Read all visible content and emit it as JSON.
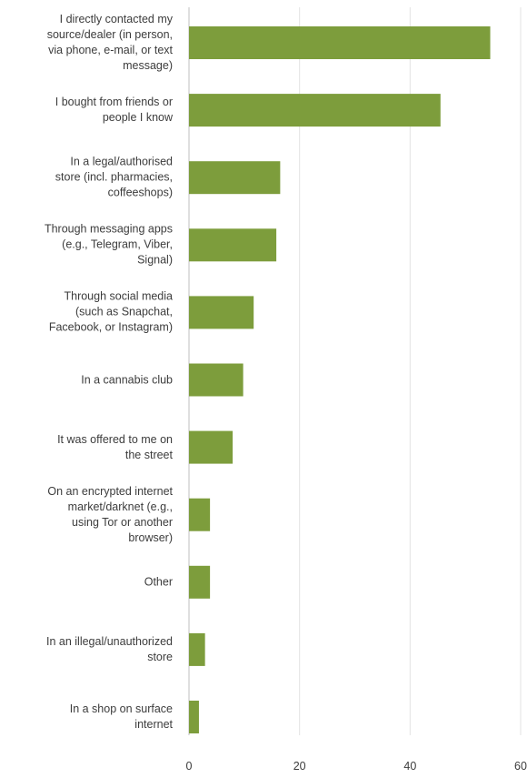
{
  "chart_data": {
    "type": "bar",
    "orientation": "horizontal",
    "title": "",
    "xlabel": "",
    "ylabel": "",
    "xlim": [
      0,
      60
    ],
    "xticks": [
      0,
      20,
      40,
      60
    ],
    "grid": true,
    "bar_color": "#7d9d3c",
    "categories": [
      "I directly contacted my source/dealer (in person, via phone, e-mail, or text message)",
      "I bought from friends or people I know",
      "In a legal/authorised store (incl. pharmacies, coffeeshops)",
      "Through messaging apps (e.g., Telegram, Viber, Signal)",
      "Through social media (such as Snapchat, Facebook, or Instagram)",
      "In a cannabis club",
      "It was offered to me on the street",
      "On an encrypted internet market/darknet (e.g., using Tor or another browser)",
      "Other",
      "In an illegal/unauthorized store",
      "In a shop on surface internet"
    ],
    "category_lines": [
      [
        "I directly contacted my",
        "source/dealer (in person,",
        "via phone, e-mail, or text",
        "message)"
      ],
      [
        "I bought from friends or",
        "people I know"
      ],
      [
        "In a legal/authorised",
        "store (incl. pharmacies,",
        "coffeeshops)"
      ],
      [
        "Through messaging apps",
        "(e.g., Telegram, Viber,",
        "Signal)"
      ],
      [
        "Through social media",
        "(such as Snapchat,",
        "Facebook, or Instagram)"
      ],
      [
        "In a cannabis club"
      ],
      [
        "It was offered to me on",
        "the street"
      ],
      [
        "On an encrypted internet",
        "market/darknet (e.g.,",
        "using Tor or another",
        "browser)"
      ],
      [
        "Other"
      ],
      [
        "In an illegal/unauthorized",
        "store"
      ],
      [
        "In a shop on surface",
        "internet"
      ]
    ],
    "values": [
      54.5,
      45.5,
      16.5,
      15.8,
      11.7,
      9.8,
      7.9,
      3.8,
      3.8,
      2.9,
      1.8
    ]
  }
}
